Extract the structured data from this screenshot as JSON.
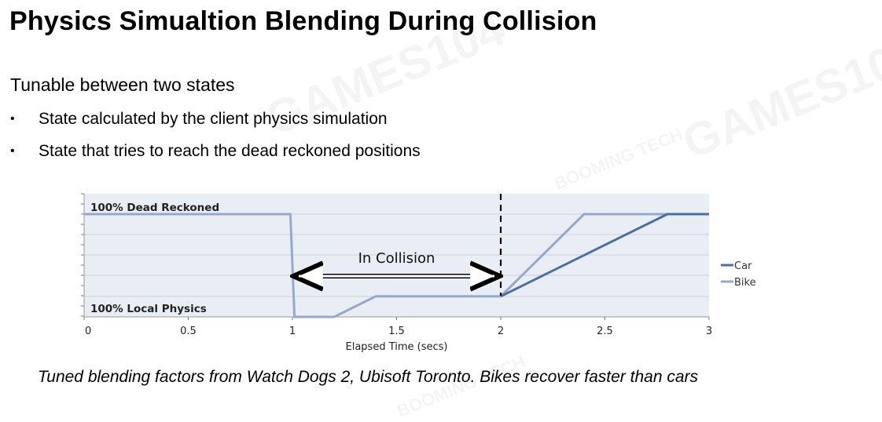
{
  "slide": {
    "title": "Physics Simualtion Blending During Collision",
    "subtitle": "Tunable between two states",
    "bullets": [
      "State calculated by the client physics simulation",
      "State that tries to reach the dead reckoned positions"
    ],
    "caption": "Tuned blending factors from Watch Dogs 2, Ubisoft Toronto. Bikes recover faster than cars",
    "watermarks": [
      "GAMES104",
      "BOOMING TECH"
    ]
  },
  "chart_data": {
    "type": "line",
    "xlabel": "Elapsed Time (secs)",
    "ylabel": "",
    "xlim": [
      0,
      3
    ],
    "ylim": [
      0,
      1
    ],
    "xticks": [
      0,
      0.5,
      1,
      1.5,
      2,
      2.5,
      3
    ],
    "xtick_labels": [
      "0",
      "0.5",
      "1",
      "1.5",
      "2",
      "2.5",
      "3"
    ],
    "y_labels": {
      "top": "100% Dead Reckoned",
      "bottom": "100% Local Physics"
    },
    "annotation": {
      "text": "In Collision",
      "x_start": 1,
      "x_end": 2
    },
    "vertical_marker": {
      "x": 2,
      "style": "dashed"
    },
    "grid": true,
    "legend": "right",
    "series": [
      {
        "name": "Car",
        "color": "#4a6fa5",
        "points": [
          [
            2,
            0.2
          ],
          [
            2.8,
            1
          ],
          [
            3,
            1
          ]
        ]
      },
      {
        "name": "Bike",
        "color": "#95a9cc",
        "points": [
          [
            0,
            1
          ],
          [
            0.99,
            1
          ],
          [
            1.01,
            0
          ],
          [
            1.2,
            0
          ],
          [
            1.4,
            0.2
          ],
          [
            2,
            0.2
          ],
          [
            2.4,
            1
          ],
          [
            3,
            1
          ]
        ]
      }
    ],
    "colors": {
      "plot_bg": "#e9edf4",
      "grid": "#ffffff",
      "axis": "#000000"
    }
  }
}
